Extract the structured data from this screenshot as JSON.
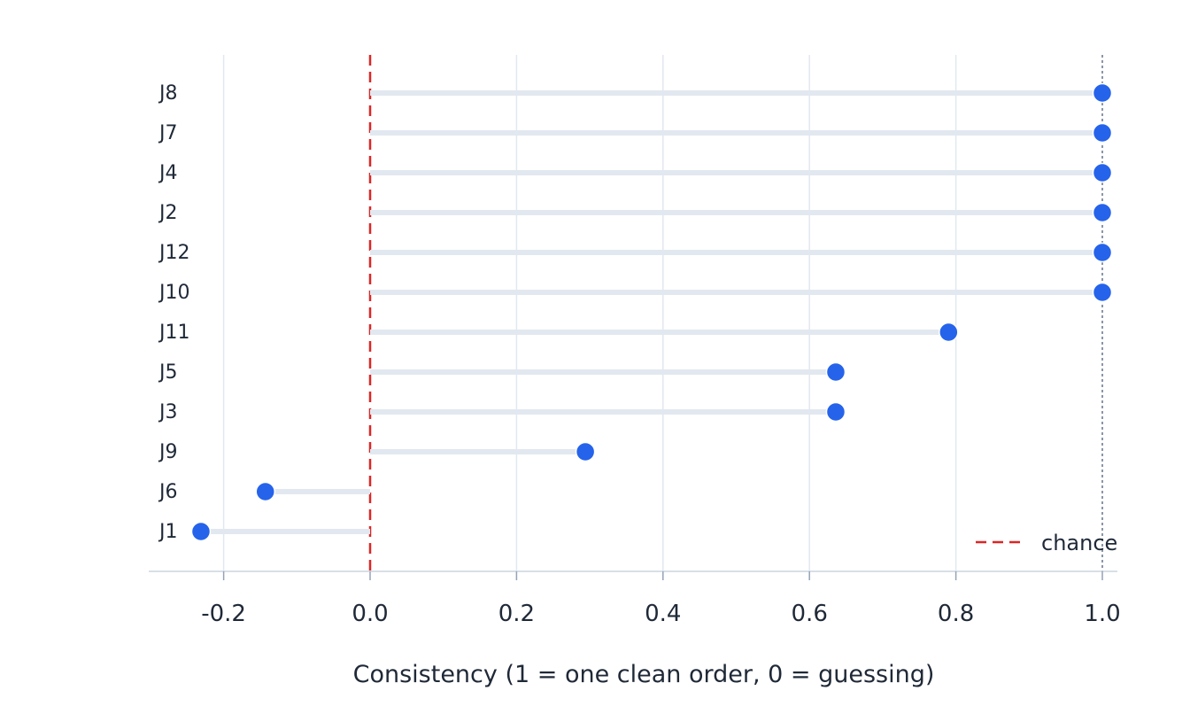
{
  "chart_data": {
    "type": "lollipop",
    "categories": [
      "J8",
      "J7",
      "J4",
      "J2",
      "J12",
      "J10",
      "J11",
      "J5",
      "J3",
      "J9",
      "J6",
      "J1"
    ],
    "values": [
      1.0,
      1.0,
      1.0,
      1.0,
      1.0,
      1.0,
      0.79,
      0.636,
      0.636,
      0.294,
      -0.143,
      -0.231
    ],
    "xlabel": "Consistency  (1 = one clean order, 0 = guessing)",
    "xlim": [
      -0.3,
      1.0
    ],
    "xticks": [
      -0.2,
      0.0,
      0.2,
      0.4,
      0.6,
      0.8,
      1.0
    ],
    "xtick_labels": [
      "-0.2",
      "0.0",
      "0.2",
      "0.4",
      "0.6",
      "0.8",
      "1.0"
    ],
    "reference_lines": [
      {
        "x": 0.0,
        "style": "dashed",
        "color": "#dc2626",
        "legend": "chance"
      },
      {
        "x": 1.0,
        "style": "dotted",
        "color": "#64748b"
      }
    ],
    "legend": {
      "label": "chance",
      "placement": "bottom-right"
    },
    "grid": "vertical",
    "colors": {
      "dot": "#2563eb",
      "stem": "#e2e8f0",
      "grid": "#e2e8f0",
      "chance": "#dc2626"
    }
  }
}
